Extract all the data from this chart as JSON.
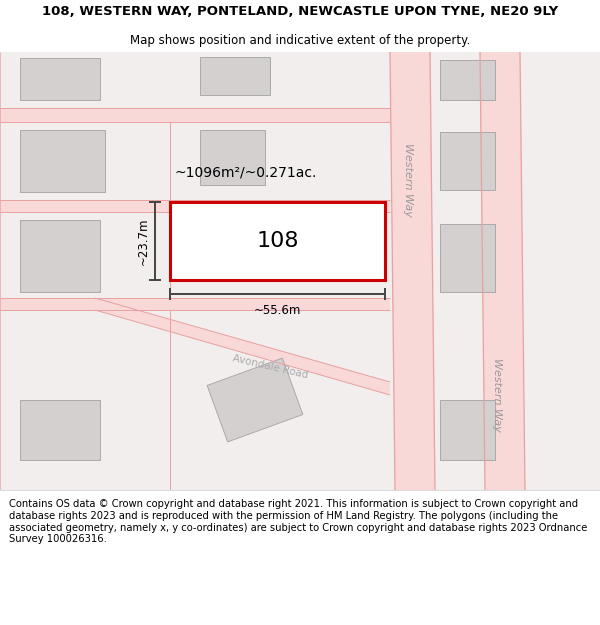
{
  "title_line1": "108, WESTERN WAY, PONTELAND, NEWCASTLE UPON TYNE, NE20 9LY",
  "title_line2": "Map shows position and indicative extent of the property.",
  "footer_text": "Contains OS data © Crown copyright and database right 2021. This information is subject to Crown copyright and database rights 2023 and is reproduced with the permission of HM Land Registry. The polygons (including the associated geometry, namely x, y co-ordinates) are subject to Crown copyright and database rights 2023 Ordnance Survey 100026316.",
  "map_bg": "#f2eeee",
  "road_color": "#f9d8d8",
  "road_edge_color": "#e8a0a0",
  "building_color": "#d4d0d0",
  "building_edge_color": "#aaaaaa",
  "plot_color": "#ffffff",
  "plot_edge_color": "#cc0000",
  "plot_label": "108",
  "area_label": "~1096m²/~0.271ac.",
  "dim_width_label": "~55.6m",
  "dim_height_label": "~23.7m",
  "road_label1": "Western Way",
  "road_label2": "Western Way",
  "road_label3": "Avondale Road",
  "title_fontsize": 9.5,
  "subtitle_fontsize": 8.5,
  "footer_fontsize": 7.2
}
